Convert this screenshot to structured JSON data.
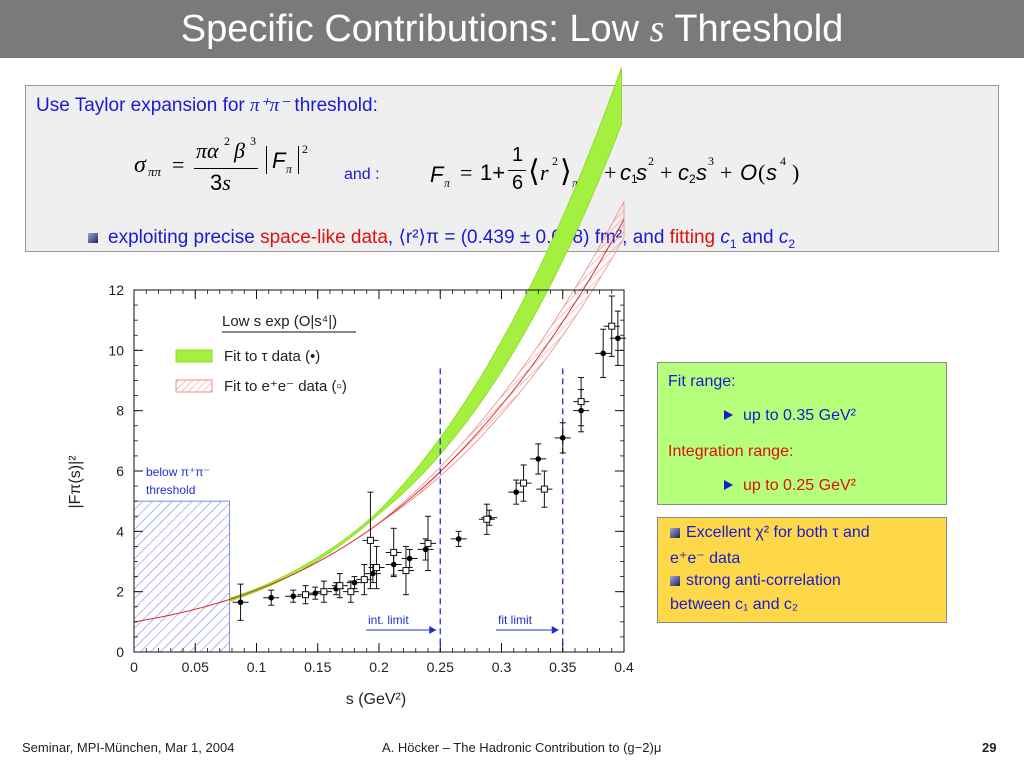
{
  "slide": {
    "title_pre": "Specific Contributions: Low ",
    "title_var": "s",
    "title_post": " Threshold",
    "page_number": "29"
  },
  "top_box": {
    "intro_pre": "Use Taylor expansion for ",
    "intro_math": "π⁺π⁻",
    "intro_post": " threshold:",
    "connector": "and :",
    "bullet_pre": "exploiting precise ",
    "bullet_red1": "space-like data",
    "bullet_mid": ", ⟨r²⟩π = (0.439 ± 0.008) fm², and ",
    "bullet_red2": "fitting",
    "bullet_c1": "c",
    "bullet_sub1": "1",
    "bullet_and": " and ",
    "bullet_c2": "c",
    "bullet_sub2": "2"
  },
  "fit_box": {
    "fit_range_label": "Fit range:",
    "fit_range_value": "up to 0.35 GeV²",
    "int_range_label": "Integration range:",
    "int_range_value": "up to 0.25 GeV²"
  },
  "summary_box": {
    "line1": "Excellent χ² for both τ and",
    "line2": "e⁺e⁻ data",
    "line3": "strong anti-correlation",
    "line4": "between c₁ and c₂"
  },
  "footer": {
    "left": "Seminar, MPI-München, Mar 1, 2004",
    "center": "A. Höcker – The Hadronic Contribution to (g−2)μ"
  },
  "chart_data": {
    "type": "scatter",
    "xlabel": "s   (GeV²)",
    "ylabel": "|Fπ(s)|²",
    "xlim": [
      0,
      0.4
    ],
    "ylim": [
      0,
      12
    ],
    "x_ticks": [
      "0",
      "0.05",
      "0.1",
      "0.15",
      "0.2",
      "0.25",
      "0.3",
      "0.35",
      "0.4"
    ],
    "y_ticks": [
      "0",
      "2",
      "4",
      "6",
      "8",
      "10",
      "12"
    ],
    "legend_title": "Low s exp (O|s⁴|)",
    "legend": [
      "Fit to τ data (•)",
      "Fit to e⁺e⁻ data (▫)"
    ],
    "annotations": {
      "below_threshold": [
        "below π⁺π⁻",
        "threshold"
      ],
      "int_limit": "int. limit",
      "fit_limit": "fit limit"
    },
    "vertical_lines": [
      0.25,
      0.35
    ],
    "threshold_s": 0.078,
    "series": [
      {
        "name": "τ data (•)",
        "marker": "filled-circle",
        "points": [
          [
            0.087,
            1.65,
            0.6
          ],
          [
            0.112,
            1.8,
            0.25
          ],
          [
            0.13,
            1.85,
            0.2
          ],
          [
            0.148,
            1.95,
            0.2
          ],
          [
            0.165,
            2.1,
            0.2
          ],
          [
            0.18,
            2.3,
            0.2
          ],
          [
            0.195,
            2.6,
            0.3
          ],
          [
            0.212,
            2.9,
            0.35
          ],
          [
            0.225,
            3.1,
            0.3
          ],
          [
            0.238,
            3.4,
            0.35
          ],
          [
            0.265,
            3.75,
            0.25
          ],
          [
            0.29,
            4.45,
            0.25
          ],
          [
            0.312,
            5.3,
            0.4
          ],
          [
            0.33,
            6.4,
            0.5
          ],
          [
            0.35,
            7.1,
            0.5
          ],
          [
            0.365,
            8.0,
            0.7
          ],
          [
            0.383,
            9.9,
            0.8
          ],
          [
            0.395,
            10.4,
            0.9
          ]
        ]
      },
      {
        "name": "e⁺e⁻ data (▫)",
        "marker": "open-square",
        "points": [
          [
            0.14,
            1.9,
            0.3
          ],
          [
            0.155,
            2.0,
            0.35
          ],
          [
            0.168,
            2.2,
            0.4
          ],
          [
            0.177,
            2.0,
            0.35
          ],
          [
            0.188,
            2.4,
            0.5
          ],
          [
            0.193,
            3.7,
            1.6
          ],
          [
            0.198,
            2.8,
            0.7
          ],
          [
            0.212,
            3.3,
            0.8
          ],
          [
            0.222,
            2.7,
            0.8
          ],
          [
            0.24,
            3.6,
            0.9
          ],
          [
            0.288,
            4.4,
            0.5
          ],
          [
            0.318,
            5.6,
            0.6
          ],
          [
            0.335,
            5.4,
            0.6
          ],
          [
            0.365,
            8.3,
            0.8
          ],
          [
            0.39,
            10.8,
            1.0
          ]
        ]
      }
    ]
  }
}
